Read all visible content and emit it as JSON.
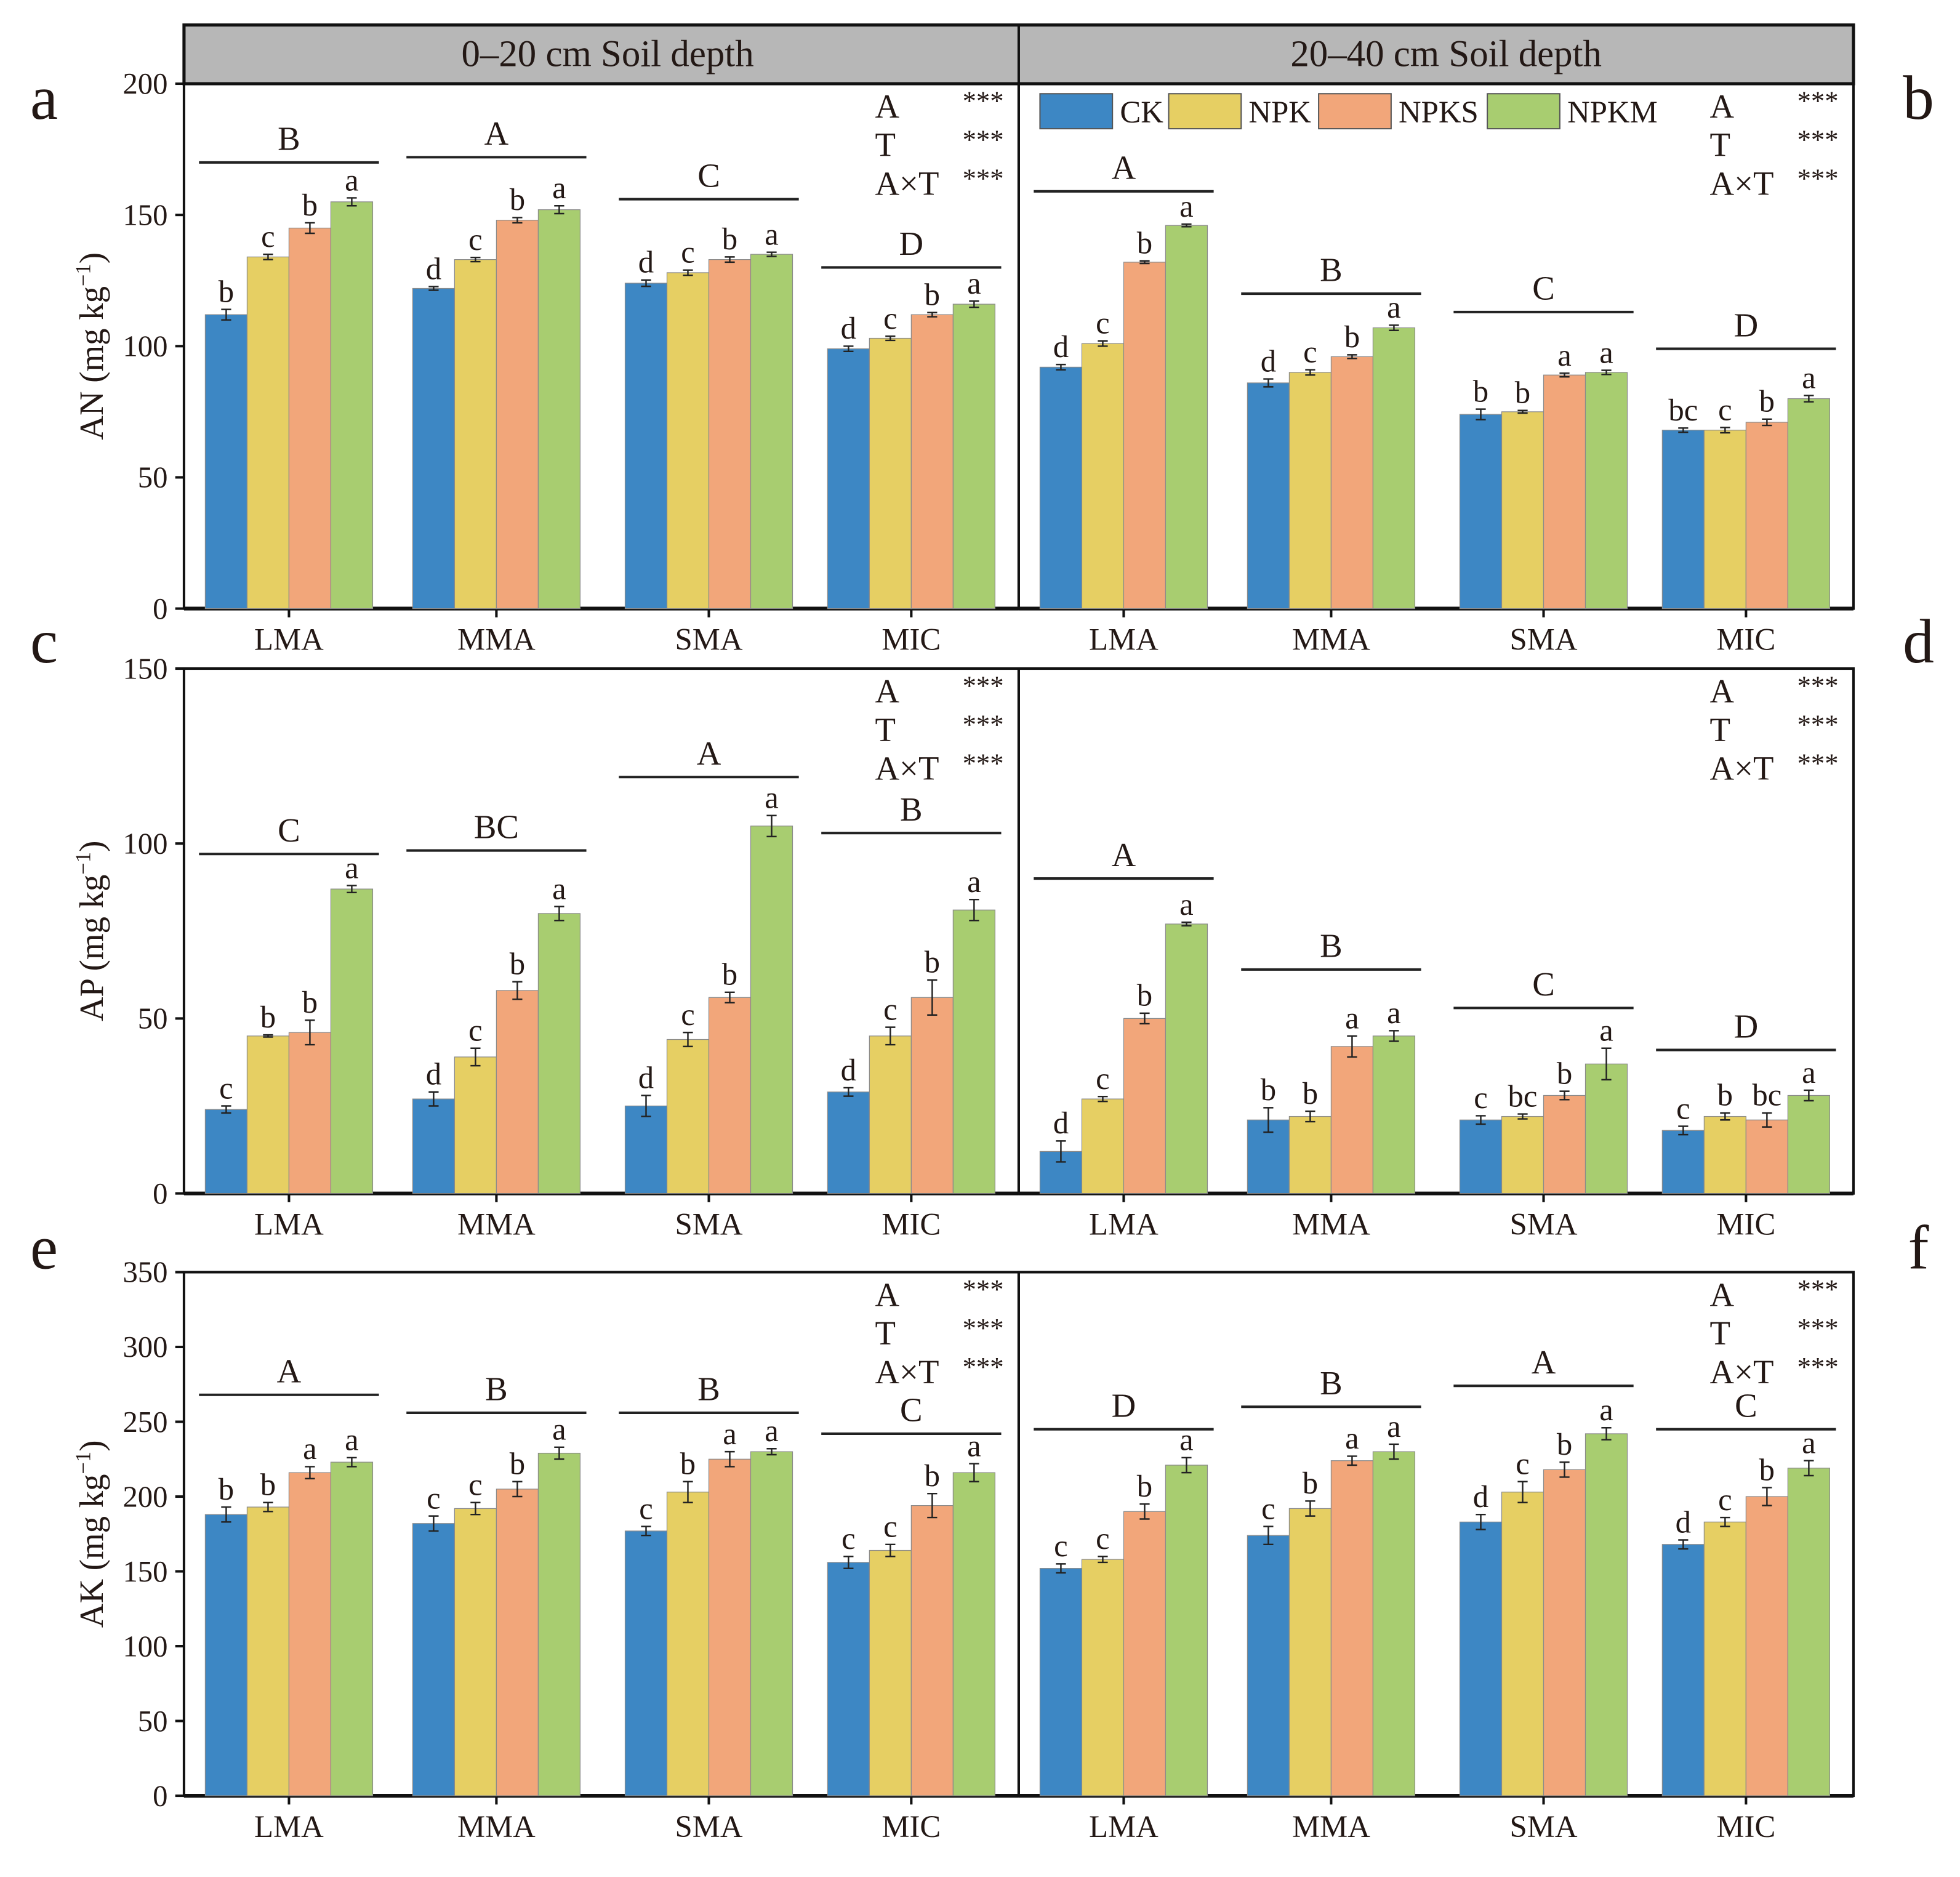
{
  "chart_data": {
    "type": "bar",
    "layout": "3 rows x 2 columns of grouped bar charts",
    "header": [
      "0–20 cm Soil depth",
      "20–40 cm Soil depth"
    ],
    "categories": [
      "LMA",
      "MMA",
      "SMA",
      "MIC"
    ],
    "legend": {
      "placement": "top (panel b)",
      "entries": [
        "CK",
        "NPK",
        "NPKS",
        "NPKM"
      ]
    },
    "colors": {
      "CK": "#3d87c4",
      "NPK": "#e6cf63",
      "NPKS": "#f2a67a",
      "NPKM": "#a8cd70",
      "header_bg": "#b7b7b7"
    },
    "stats_labels": [
      {
        "term": "A",
        "sig": "***"
      },
      {
        "term": "T",
        "sig": "***"
      },
      {
        "term": "A×T",
        "sig": "***"
      }
    ],
    "rows": [
      {
        "ylabel": "AN (mg kg",
        "ylabel_sup": "−1",
        "ylabel_end": ")",
        "ylim": [
          0,
          200
        ],
        "ticks": [
          "0",
          "50",
          "100",
          "150",
          "200"
        ]
      },
      {
        "ylabel": "AP (mg kg",
        "ylabel_sup": "−1",
        "ylabel_end": ")",
        "ylim": [
          0,
          150
        ],
        "ticks": [
          "0",
          "50",
          "100",
          "150"
        ]
      },
      {
        "ylabel": "AK (mg kg",
        "ylabel_sup": "−1",
        "ylabel_end": ")",
        "ylim": [
          0,
          350
        ],
        "ticks": [
          "0",
          "50",
          "100",
          "150",
          "200",
          "250",
          "300",
          "350"
        ]
      }
    ],
    "panels": [
      {
        "label": "a",
        "row": 0,
        "col": 0,
        "values": [
          [
            112,
            134,
            145,
            155
          ],
          [
            122,
            133,
            148,
            152
          ],
          [
            124,
            128,
            133,
            135
          ],
          [
            99,
            103,
            112,
            116
          ]
        ],
        "errors": [
          [
            2,
            1,
            2,
            1.5
          ],
          [
            0.7,
            0.8,
            1,
            1.5
          ],
          [
            1.2,
            1,
            1,
            0.8
          ],
          [
            1,
            0.8,
            0.8,
            1.2
          ]
        ],
        "letters": [
          [
            "b",
            "c",
            "b",
            "a"
          ],
          [
            "d",
            "c",
            "b",
            "a"
          ],
          [
            "d",
            "c",
            "b",
            "a"
          ],
          [
            "d",
            "c",
            "b",
            "a"
          ]
        ],
        "group_letters": [
          "B",
          "A",
          "C",
          "D"
        ],
        "group_line": [
          170,
          172,
          156,
          130
        ]
      },
      {
        "label": "b",
        "row": 0,
        "col": 1,
        "values": [
          [
            92,
            101,
            132,
            146
          ],
          [
            86,
            90,
            96,
            107
          ],
          [
            74,
            75,
            89,
            90
          ],
          [
            68,
            68,
            71,
            80
          ]
        ],
        "errors": [
          [
            1,
            1,
            0.5,
            0.5
          ],
          [
            1.5,
            1,
            0.7,
            1
          ],
          [
            2,
            0.5,
            0.7,
            0.8
          ],
          [
            0.8,
            1,
            1.2,
            1.2
          ]
        ],
        "letters": [
          [
            "d",
            "c",
            "b",
            "a"
          ],
          [
            "d",
            "c",
            "b",
            "a"
          ],
          [
            "b",
            "b",
            "a",
            "a"
          ],
          [
            "bc",
            "c",
            "b",
            "a"
          ]
        ],
        "group_letters": [
          "A",
          "B",
          "C",
          "D"
        ],
        "group_line": [
          159,
          120,
          113,
          99
        ]
      },
      {
        "label": "c",
        "row": 1,
        "col": 0,
        "values": [
          [
            24,
            45,
            46,
            87
          ],
          [
            27,
            39,
            58,
            80
          ],
          [
            25,
            44,
            56,
            105
          ],
          [
            29,
            45,
            56,
            81
          ]
        ],
        "errors": [
          [
            1,
            0.3,
            3.5,
            1
          ],
          [
            2,
            2.5,
            2.5,
            2
          ],
          [
            3,
            2,
            1.5,
            3
          ],
          [
            1.2,
            2.5,
            5,
            3
          ]
        ],
        "letters": [
          [
            "c",
            "b",
            "b",
            "a"
          ],
          [
            "d",
            "c",
            "b",
            "a"
          ],
          [
            "d",
            "c",
            "b",
            "a"
          ],
          [
            "d",
            "c",
            "b",
            "a"
          ]
        ],
        "group_letters": [
          "C",
          "BC",
          "A",
          "B"
        ],
        "group_line": [
          97,
          98,
          119,
          103
        ]
      },
      {
        "label": "d",
        "row": 1,
        "col": 1,
        "values": [
          [
            12,
            27,
            50,
            77
          ],
          [
            21,
            22,
            42,
            45
          ],
          [
            21,
            22,
            28,
            37
          ],
          [
            18,
            22,
            21,
            28
          ]
        ],
        "errors": [
          [
            3,
            0.7,
            1.5,
            0.5
          ],
          [
            3.5,
            1.5,
            3,
            1.5
          ],
          [
            1.2,
            0.7,
            1.2,
            4.5
          ],
          [
            1.2,
            1,
            2,
            1.5
          ]
        ],
        "letters": [
          [
            "d",
            "c",
            "b",
            "a"
          ],
          [
            "b",
            "b",
            "a",
            "a"
          ],
          [
            "c",
            "bc",
            "b",
            "a"
          ],
          [
            "c",
            "b",
            "bc",
            "a"
          ]
        ],
        "group_letters": [
          "A",
          "B",
          "C",
          "D"
        ],
        "group_line": [
          90,
          64,
          53,
          41
        ]
      },
      {
        "label": "e",
        "row": 2,
        "col": 0,
        "values": [
          [
            188,
            193,
            216,
            223
          ],
          [
            182,
            192,
            205,
            229
          ],
          [
            177,
            203,
            225,
            230
          ],
          [
            156,
            164,
            194,
            216
          ]
        ],
        "errors": [
          [
            5,
            3,
            4,
            3
          ],
          [
            5,
            4,
            5,
            4
          ],
          [
            3,
            7,
            5,
            2
          ],
          [
            4,
            4,
            8,
            6
          ]
        ],
        "letters": [
          [
            "b",
            "b",
            "a",
            "a"
          ],
          [
            "c",
            "c",
            "b",
            "a"
          ],
          [
            "c",
            "b",
            "a",
            "a"
          ],
          [
            "c",
            "c",
            "b",
            "a"
          ]
        ],
        "group_letters": [
          "A",
          "B",
          "B",
          "C"
        ],
        "group_line": [
          268,
          256,
          256,
          242
        ]
      },
      {
        "label": "f",
        "row": 2,
        "col": 1,
        "values": [
          [
            152,
            158,
            190,
            221
          ],
          [
            174,
            192,
            224,
            230
          ],
          [
            183,
            203,
            218,
            242
          ],
          [
            168,
            183,
            200,
            219
          ]
        ],
        "errors": [
          [
            3,
            2,
            5,
            5
          ],
          [
            6,
            5,
            3,
            5
          ],
          [
            5,
            7,
            5,
            4
          ],
          [
            3,
            3,
            6,
            5
          ]
        ],
        "letters": [
          [
            "c",
            "c",
            "b",
            "a"
          ],
          [
            "c",
            "b",
            "a",
            "a"
          ],
          [
            "d",
            "c",
            "b",
            "a"
          ],
          [
            "d",
            "c",
            "b",
            "a"
          ]
        ],
        "group_letters": [
          "D",
          "B",
          "A",
          "C"
        ],
        "group_line": [
          245,
          260,
          274,
          245
        ]
      }
    ]
  }
}
